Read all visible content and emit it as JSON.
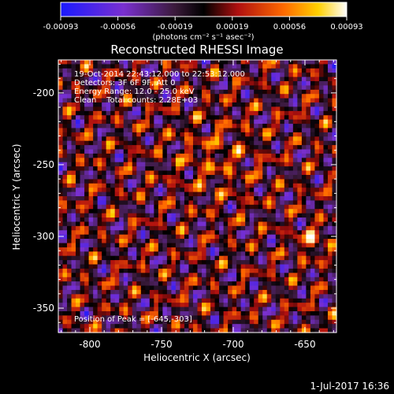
{
  "chart_data": {
    "type": "heatmap",
    "title": "Reconstructed RHESSI Image",
    "xlabel": "Heliocentric X (arcsec)",
    "ylabel": "Heliocentric Y (arcsec)",
    "xlim": [
      -822,
      -628
    ],
    "ylim": [
      -367,
      -177
    ],
    "x_ticks": [
      -800,
      -750,
      -700,
      -650
    ],
    "y_ticks": [
      -200,
      -250,
      -300,
      -350
    ],
    "colorbar": {
      "ticks": [
        "-0.00093",
        "-0.00056",
        "-0.00019",
        "0.00019",
        "0.00056",
        "0.00093"
      ],
      "range": [
        -0.00093,
        0.00093
      ],
      "unit_label": "(photons cm⁻² s⁻¹ asec⁻²)"
    },
    "info_lines": [
      "19-Oct-2014 22:43:12.000 to 22:53:12.000",
      "Detectors: 3F 6F 9F, Att 0",
      "Energy Range: 12.0 - 25.0 keV",
      "Clean    Total counts: 2.28E+03"
    ],
    "peak_label": "Position of Peak = [-645,-303]",
    "peak": [
      -645,
      -303
    ]
  },
  "footer": {
    "timestamp": "1-Jul-2017 16:36"
  }
}
